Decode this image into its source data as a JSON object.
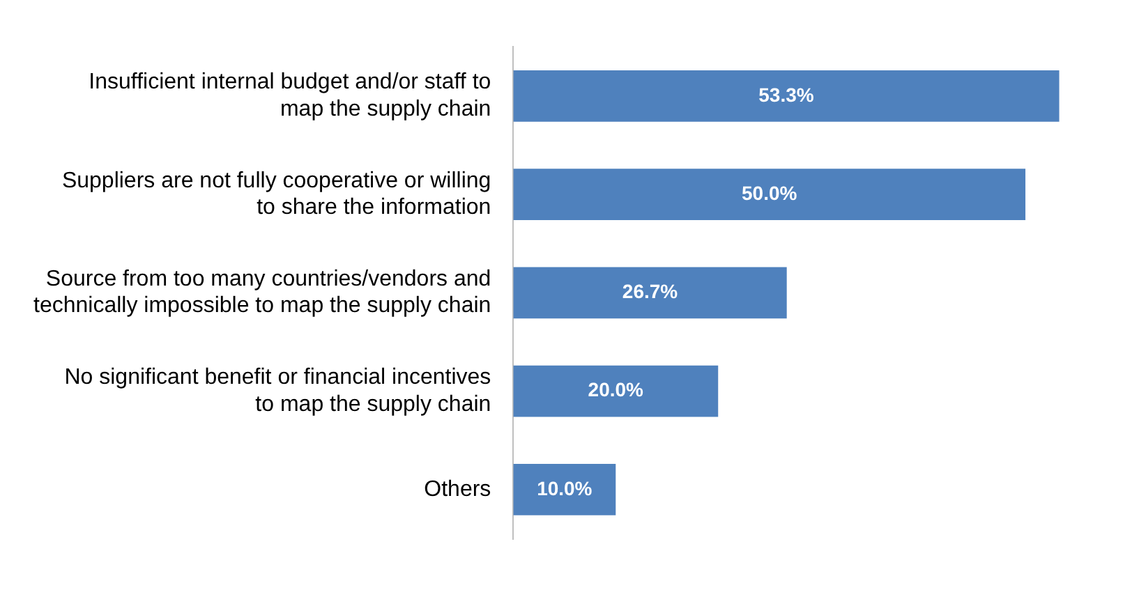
{
  "chart_data": {
    "type": "bar",
    "orientation": "horizontal",
    "categories": [
      "Insufficient internal budget and/or staff to map the supply chain",
      "Suppliers are not fully cooperative or willing to share the information",
      "Source from too many countries/vendors and technically impossible to map the supply chain",
      "No significant benefit or financial incentives to map the supply chain",
      "Others"
    ],
    "values": [
      53.3,
      50.0,
      26.7,
      20.0,
      10.0
    ],
    "value_labels": [
      "53.3%",
      "50.0%",
      "26.7%",
      "20.0%",
      "10.0%"
    ],
    "color": "#4f81bd",
    "grid": false,
    "legend": false
  }
}
